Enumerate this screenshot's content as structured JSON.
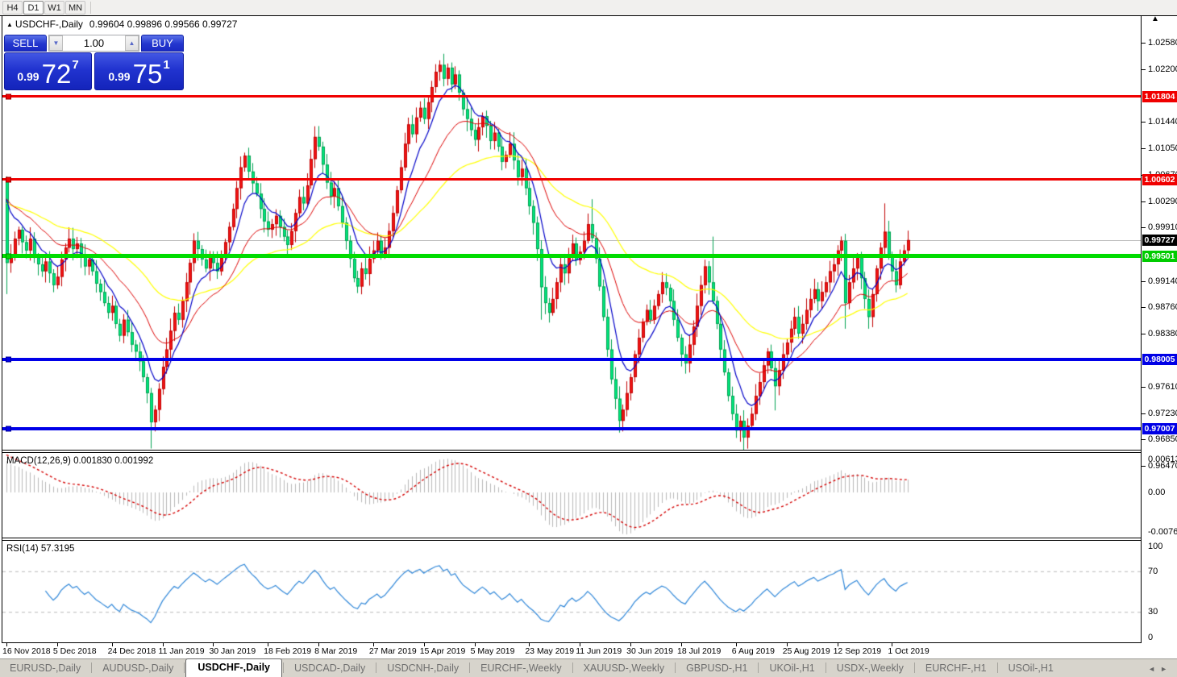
{
  "toolbar": {
    "timeframes": [
      "H4",
      "D1",
      "W1",
      "MN"
    ],
    "active_timeframe": "D1"
  },
  "chart_title": {
    "collapse_icon": "▲",
    "symbol": "USDCHF-,Daily",
    "ohlc": "0.99604 0.99896 0.99566 0.99727"
  },
  "trade_panel": {
    "sell_label": "SELL",
    "buy_label": "BUY",
    "volume": "1.00",
    "spin_down_icon": "▼",
    "spin_up_icon": "▲",
    "sell_price": {
      "small": "0.99",
      "big": "72",
      "sup": "7"
    },
    "buy_price": {
      "small": "0.99",
      "big": "75",
      "sup": "1"
    }
  },
  "price_axis": {
    "ticks": [
      "1.02580",
      "1.02200",
      "1.01440",
      "1.01050",
      "1.00670",
      "1.00290",
      "0.99910",
      "0.99140",
      "0.98760",
      "0.98380",
      "0.97610",
      "0.97230",
      "0.96850",
      "0.96470"
    ],
    "badges": [
      {
        "value": "1.01804",
        "color": "#f00000"
      },
      {
        "value": "1.00602",
        "color": "#f00000"
      },
      {
        "value": "0.99727",
        "color": "#000000"
      },
      {
        "value": "0.99501",
        "color": "#00cc00"
      },
      {
        "value": "0.98005",
        "color": "#0000e6"
      },
      {
        "value": "0.97007",
        "color": "#0000e6"
      }
    ],
    "scroll_triangle": "▲"
  },
  "macd": {
    "name": "MACD(12,26,9)",
    "values": "0.001830 0.001992",
    "axis": [
      "0.00613",
      "0.00",
      "-0.00761"
    ]
  },
  "rsi": {
    "name": "RSI(14)",
    "value": "57.3195",
    "axis": [
      "100",
      "70",
      "30",
      "0"
    ],
    "levels": [
      70,
      30
    ]
  },
  "date_axis": {
    "labels": [
      "16 Nov 2018",
      "5 Dec 2018",
      "24 Dec 2018",
      "11 Jan 2019",
      "30 Jan 2019",
      "18 Feb 2019",
      "8 Mar 2019",
      "27 Mar 2019",
      "15 Apr 2019",
      "5 May 2019",
      "23 May 2019",
      "11 Jun 2019",
      "30 Jun 2019",
      "18 Jul 2019",
      "6 Aug 2019",
      "25 Aug 2019",
      "12 Sep 2019",
      "1 Oct 2019"
    ],
    "indices": [
      0,
      13,
      27,
      40,
      53,
      67,
      80,
      94,
      107,
      120,
      134,
      147,
      160,
      173,
      187,
      200,
      213,
      227
    ]
  },
  "tabs": {
    "items": [
      "EURUSD-,Daily",
      "AUDUSD-,Daily",
      "USDCHF-,Daily",
      "USDCAD-,Daily",
      "USDCNH-,Daily",
      "EURCHF-,Weekly",
      "XAUUSD-,Weekly",
      "GBPUSD-,H1",
      "UKOil-,H1",
      "USDX-,Weekly",
      "EURCHF-,H1",
      "USOil-,H1"
    ],
    "active": "USDCHF-,Daily",
    "scroll_left_icon": "◄",
    "scroll_right_icon": "►"
  },
  "colors": {
    "candle_up": "#f21414",
    "candle_up_border": "#c00000",
    "candle_down": "#00e87e",
    "candle_down_border": "#00a050",
    "ma_fast": "#0000c8",
    "ma_mid": "#dc0000",
    "ma_slow": "#ffff00",
    "macd_hist": "#b9b9b9",
    "macd_signal": "#d40000",
    "rsi_line": "#2e86d8",
    "grid_dash": "#b8b8b8",
    "current_price_line": "#bdbdbd"
  },
  "chart_data": {
    "type": "candlestick",
    "symbol": "USDCHF",
    "timeframe": "Daily",
    "price_range": [
      0.9647,
      1.0258
    ],
    "current_price": 0.99727,
    "sr_lines": [
      {
        "price": 1.01804,
        "color": "#f00000",
        "thickness": 3
      },
      {
        "price": 1.00602,
        "color": "#f00000",
        "thickness": 3
      },
      {
        "price": 0.99501,
        "color": "#00dc00",
        "thickness": 5
      },
      {
        "price": 0.98005,
        "color": "#0000e8",
        "thickness": 4
      },
      {
        "price": 0.97007,
        "color": "#0000e8",
        "thickness": 4
      }
    ],
    "indicators": {
      "ma_periods": [
        8,
        21,
        50
      ],
      "macd": [
        12,
        26,
        9
      ],
      "rsi": 14
    },
    "first_open": 1.006,
    "closes": [
      0.994,
      0.9952,
      0.9975,
      0.9988,
      0.997,
      0.9958,
      0.9975,
      0.9948,
      0.9938,
      0.9928,
      0.9942,
      0.9925,
      0.9908,
      0.992,
      0.9945,
      0.9962,
      0.9975,
      0.996,
      0.9968,
      0.995,
      0.9935,
      0.9945,
      0.9928,
      0.991,
      0.9898,
      0.9882,
      0.9868,
      0.9878,
      0.9852,
      0.9835,
      0.9858,
      0.984,
      0.9822,
      0.9812,
      0.9798,
      0.9775,
      0.9752,
      0.971,
      0.9728,
      0.9758,
      0.979,
      0.9815,
      0.9842,
      0.9868,
      0.9858,
      0.9885,
      0.9912,
      0.994,
      0.9972,
      0.996,
      0.9945,
      0.9932,
      0.995,
      0.994,
      0.9928,
      0.9948,
      0.997,
      0.9992,
      1.0018,
      1.0048,
      1.0078,
      1.0095,
      1.0072,
      1.0055,
      1.004,
      1.0018,
      1.0,
      0.9988,
      0.9996,
      1.0008,
      0.9992,
      0.9978,
      0.9966,
      0.9986,
      1.0012,
      1.0035,
      1.0026,
      1.0052,
      1.009,
      1.0122,
      1.0108,
      1.0082,
      1.0056,
      1.0036,
      1.0048,
      1.0022,
      0.9998,
      0.9972,
      0.9946,
      0.9918,
      0.9906,
      0.9932,
      0.9924,
      0.9946,
      0.9958,
      0.9972,
      0.995,
      0.9962,
      0.9986,
      1.0012,
      1.0045,
      1.0078,
      1.0112,
      1.014,
      1.0126,
      1.015,
      1.0164,
      1.0148,
      1.0172,
      1.0194,
      1.0216,
      1.0226,
      1.0206,
      1.0222,
      1.0198,
      1.0212,
      1.0186,
      1.0162,
      1.0148,
      1.0132,
      1.0118,
      1.0136,
      1.0152,
      1.0138,
      1.0116,
      1.0128,
      1.0108,
      1.0086,
      1.0096,
      1.0112,
      1.0088,
      1.0064,
      1.0076,
      1.0048,
      1.0022,
      0.9998,
      0.996,
      0.9905,
      0.9882,
      0.9868,
      0.9888,
      0.9912,
      0.9938,
      0.9925,
      0.9952,
      0.9968,
      0.9944,
      0.9956,
      0.9972,
      0.9996,
      0.9976,
      0.9946,
      0.9906,
      0.9862,
      0.9815,
      0.9772,
      0.9744,
      0.9712,
      0.9728,
      0.9752,
      0.9775,
      0.9808,
      0.9832,
      0.9855,
      0.9872,
      0.9858,
      0.9878,
      0.9895,
      0.9912,
      0.9904,
      0.9885,
      0.9858,
      0.9832,
      0.9808,
      0.9795,
      0.9822,
      0.9848,
      0.9878,
      0.9908,
      0.9935,
      0.9912,
      0.9885,
      0.9852,
      0.9815,
      0.9782,
      0.9748,
      0.9722,
      0.9698,
      0.9712,
      0.9688,
      0.9705,
      0.9722,
      0.9748,
      0.9768,
      0.9792,
      0.9812,
      0.9788,
      0.9762,
      0.9785,
      0.9808,
      0.9825,
      0.9845,
      0.9862,
      0.9838,
      0.9852,
      0.9872,
      0.9888,
      0.9902,
      0.9885,
      0.9898,
      0.9912,
      0.9928,
      0.9938,
      0.9958,
      0.9972,
      0.9882,
      0.9912,
      0.9932,
      0.9948,
      0.9918,
      0.9888,
      0.9862,
      0.9895,
      0.9932,
      0.9962,
      0.9985,
      0.9952,
      0.9928,
      0.9908,
      0.9942,
      0.9958,
      0.9973
    ],
    "wick_overrides": {
      "0": {
        "high": 1.0065,
        "low": 0.9895
      },
      "37": {
        "low": 0.9672
      },
      "112": {
        "high": 1.0242
      },
      "137": {
        "low": 0.9858
      },
      "150": {
        "high": 1.0032
      },
      "157": {
        "low": 0.9695
      },
      "181": {
        "high": 0.9978
      },
      "189": {
        "low": 0.9659
      },
      "197": {
        "low": 0.9727
      },
      "215": {
        "low": 0.9845,
        "high": 0.9982
      },
      "221": {
        "low": 0.9845
      },
      "225": {
        "high": 1.0026
      }
    }
  }
}
